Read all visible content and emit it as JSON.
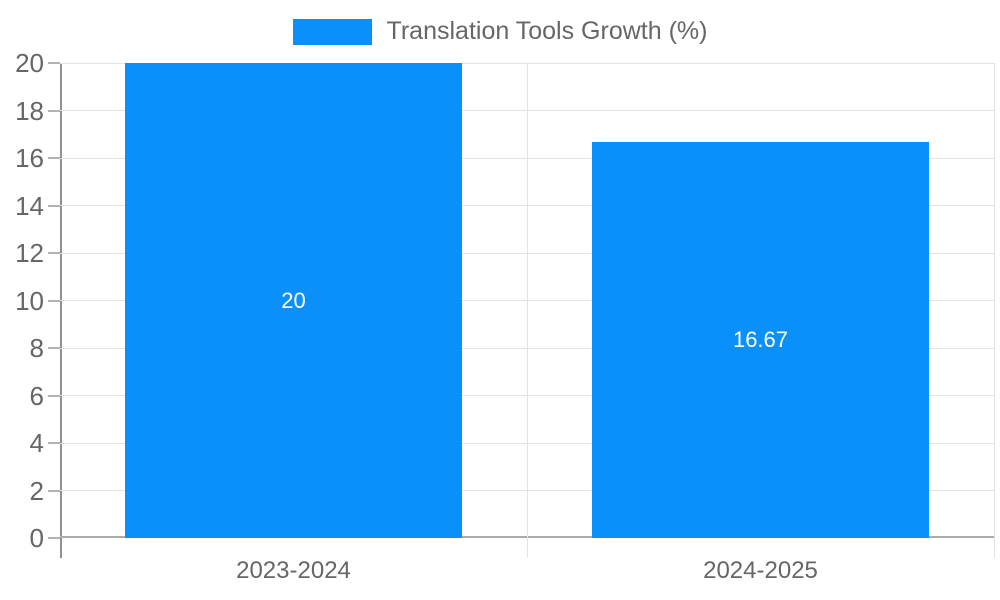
{
  "chart_data": {
    "type": "bar",
    "title": "Translation Tools Growth (%)",
    "legend_entries": [
      "Translation Tools Growth (%)"
    ],
    "legend_position": "top",
    "categories": [
      "2023-2024",
      "2024-2025"
    ],
    "series": [
      {
        "name": "Translation Tools Growth (%)",
        "values": [
          20,
          16.67
        ]
      }
    ],
    "data_labels": [
      "20",
      "16.67"
    ],
    "xlabel": "",
    "ylabel": "",
    "ylim": [
      0,
      20
    ],
    "ytick_step": 2,
    "grid": true,
    "colors": {
      "bar": "#0a90f8",
      "grid": "#e3e3e3",
      "y_axis_line": "#919191",
      "x_axis_line": "#ababab",
      "tick_mark": "#b3b3b3",
      "tick_label": "#666666",
      "data_label": "#ffffff",
      "background": "#ffffff"
    }
  }
}
